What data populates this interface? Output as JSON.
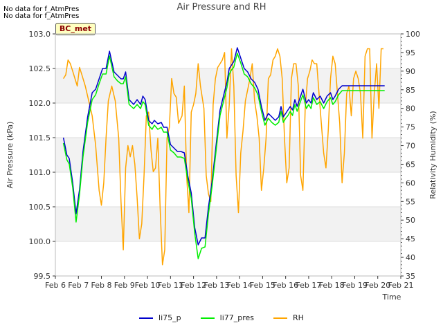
{
  "header": {
    "notes": [
      "No data for f_AtmPres",
      "No data for f_AtmPres"
    ],
    "title": "Air Pressure and RH",
    "site": "BC_met"
  },
  "chart_data": {
    "type": "line",
    "title": "Air Pressure and RH",
    "xlabel": "Time",
    "ylabel": "Air Pressure (kPa)",
    "y2label": "Relativity Humidity (%)",
    "xlim": [
      6,
      21
    ],
    "ylim": [
      99.5,
      103.0
    ],
    "y2lim": [
      35,
      100
    ],
    "x_ticks": [
      6,
      7,
      8,
      9,
      10,
      11,
      12,
      13,
      14,
      15,
      16,
      17,
      18,
      19,
      20,
      21
    ],
    "x_tick_labels": [
      "Feb 6",
      "Feb 7",
      "Feb 8",
      "Feb 9",
      "Feb 10",
      "Feb 11",
      "Feb 12",
      "Feb 13",
      "Feb 14",
      "Feb 15",
      "Feb 16",
      "Feb 17",
      "Feb 18",
      "Feb 19",
      "Feb 20",
      "Feb 21"
    ],
    "y_ticks": [
      "99.5",
      "100.0",
      "100.5",
      "101.0",
      "101.5",
      "102.0",
      "102.5",
      "103.0"
    ],
    "y2_ticks": [
      "35",
      "40",
      "45",
      "50",
      "55",
      "60",
      "65",
      "70",
      "75",
      "80",
      "85",
      "90",
      "95",
      "100"
    ],
    "grid": true,
    "legend_position": "bottom",
    "series": [
      {
        "name": "li75_p",
        "color": "#0000cc",
        "axis": "left",
        "x": [
          6.35,
          6.5,
          6.6,
          6.75,
          6.9,
          7.05,
          7.2,
          7.4,
          7.6,
          7.75,
          7.9,
          8.05,
          8.2,
          8.35,
          8.55,
          8.7,
          8.85,
          8.95,
          9.05,
          9.2,
          9.4,
          9.55,
          9.7,
          9.8,
          9.9,
          10.05,
          10.2,
          10.3,
          10.45,
          10.6,
          10.7,
          10.85,
          11.0,
          11.15,
          11.3,
          11.45,
          11.6,
          11.75,
          11.9,
          12.05,
          12.2,
          12.35,
          12.5,
          12.65,
          12.8,
          12.95,
          13.05,
          13.15,
          13.3,
          13.45,
          13.55,
          13.65,
          13.75,
          13.9,
          14.05,
          14.2,
          14.35,
          14.5,
          14.65,
          14.8,
          14.95,
          15.1,
          15.25,
          15.4,
          15.55,
          15.7,
          15.8,
          15.9,
          16.0,
          16.1,
          16.2,
          16.3,
          16.4,
          16.5,
          16.6,
          16.75,
          16.9,
          17.0,
          17.1,
          17.2,
          17.35,
          17.5,
          17.65,
          17.8,
          17.95,
          18.05,
          18.15,
          18.3,
          18.45,
          18.55,
          18.7,
          18.85,
          18.95,
          19.05,
          19.2,
          19.35,
          19.5,
          19.6,
          19.7,
          19.85,
          20.0,
          20.15,
          20.3
        ],
        "values": [
          101.5,
          101.25,
          101.2,
          100.85,
          100.4,
          100.75,
          101.3,
          101.8,
          102.15,
          102.2,
          102.35,
          102.5,
          102.5,
          102.75,
          102.45,
          102.4,
          102.35,
          102.35,
          102.45,
          102.05,
          101.98,
          102.05,
          101.98,
          102.1,
          102.05,
          101.75,
          101.7,
          101.75,
          101.7,
          101.72,
          101.65,
          101.65,
          101.4,
          101.35,
          101.3,
          101.3,
          101.28,
          100.95,
          100.7,
          100.2,
          99.95,
          100.05,
          100.05,
          100.5,
          100.85,
          101.3,
          101.6,
          101.9,
          102.1,
          102.3,
          102.5,
          102.55,
          102.6,
          102.8,
          102.65,
          102.5,
          102.45,
          102.35,
          102.3,
          102.2,
          101.95,
          101.75,
          101.85,
          101.8,
          101.75,
          101.8,
          101.95,
          101.8,
          101.85,
          101.9,
          101.95,
          101.9,
          102.05,
          101.95,
          102.05,
          102.2,
          102.0,
          102.05,
          102.0,
          102.15,
          102.05,
          102.1,
          102.0,
          102.1,
          102.15,
          102.05,
          102.1,
          102.2,
          102.25,
          102.25,
          102.25,
          102.25,
          102.25,
          102.25,
          102.25,
          102.25,
          102.25,
          102.25,
          102.25,
          102.25,
          102.25,
          102.25,
          102.25
        ]
      },
      {
        "name": "li77_pres",
        "color": "#00ee00",
        "axis": "left",
        "x": [
          6.35,
          6.5,
          6.6,
          6.75,
          6.9,
          7.05,
          7.2,
          7.4,
          7.6,
          7.75,
          7.9,
          8.05,
          8.2,
          8.35,
          8.55,
          8.7,
          8.85,
          8.95,
          9.05,
          9.2,
          9.4,
          9.55,
          9.7,
          9.8,
          9.9,
          10.05,
          10.2,
          10.3,
          10.45,
          10.6,
          10.7,
          10.85,
          11.0,
          11.15,
          11.3,
          11.45,
          11.6,
          11.75,
          11.9,
          12.05,
          12.2,
          12.35,
          12.5,
          12.65,
          12.8,
          12.95,
          13.05,
          13.15,
          13.3,
          13.45,
          13.55,
          13.65,
          13.75,
          13.9,
          14.05,
          14.2,
          14.35,
          14.5,
          14.65,
          14.8,
          14.95,
          15.1,
          15.25,
          15.4,
          15.55,
          15.7,
          15.8,
          15.9,
          16.0,
          16.1,
          16.2,
          16.3,
          16.4,
          16.5,
          16.6,
          16.75,
          16.9,
          17.0,
          17.1,
          17.2,
          17.35,
          17.5,
          17.65,
          17.8,
          17.95,
          18.05,
          18.15,
          18.3,
          18.45,
          18.55,
          18.7,
          18.85,
          18.95,
          19.05,
          19.2,
          19.35,
          19.5,
          19.6,
          19.7,
          19.85,
          20.0,
          20.15,
          20.3
        ],
        "values": [
          101.42,
          101.18,
          101.12,
          100.78,
          100.28,
          100.68,
          101.22,
          101.72,
          102.05,
          102.12,
          102.28,
          102.42,
          102.42,
          102.68,
          102.38,
          102.32,
          102.28,
          102.28,
          102.38,
          101.98,
          101.92,
          101.98,
          101.92,
          102.02,
          101.98,
          101.68,
          101.62,
          101.68,
          101.62,
          101.65,
          101.58,
          101.58,
          101.32,
          101.28,
          101.22,
          101.22,
          101.2,
          100.88,
          100.62,
          100.12,
          99.75,
          99.9,
          99.92,
          100.4,
          100.78,
          101.22,
          101.52,
          101.82,
          102.02,
          102.22,
          102.42,
          102.48,
          102.52,
          102.72,
          102.58,
          102.42,
          102.38,
          102.28,
          102.22,
          102.12,
          101.88,
          101.68,
          101.78,
          101.72,
          101.68,
          101.72,
          101.88,
          101.72,
          101.78,
          101.82,
          101.88,
          101.82,
          101.98,
          101.88,
          101.98,
          102.12,
          101.92,
          101.98,
          101.92,
          102.08,
          101.98,
          102.02,
          101.92,
          102.02,
          102.08,
          101.98,
          102.02,
          102.12,
          102.18,
          102.18,
          102.18,
          102.18,
          102.18,
          102.18,
          102.18,
          102.18,
          102.18,
          102.18,
          102.18,
          102.18,
          102.18,
          102.18,
          102.18
        ]
      },
      {
        "name": "RH",
        "color": "#ffa500",
        "axis": "right",
        "x": [
          6.35,
          6.45,
          6.55,
          6.65,
          6.75,
          6.85,
          6.95,
          7.05,
          7.15,
          7.3,
          7.45,
          7.6,
          7.75,
          7.9,
          8.0,
          8.1,
          8.2,
          8.3,
          8.45,
          8.6,
          8.75,
          8.85,
          8.95,
          9.05,
          9.15,
          9.25,
          9.35,
          9.45,
          9.55,
          9.65,
          9.75,
          9.85,
          9.95,
          10.05,
          10.15,
          10.25,
          10.35,
          10.45,
          10.55,
          10.65,
          10.75,
          10.85,
          10.95,
          11.05,
          11.15,
          11.25,
          11.35,
          11.5,
          11.6,
          11.7,
          11.8,
          11.9,
          12.0,
          12.1,
          12.2,
          12.3,
          12.45,
          12.55,
          12.65,
          12.75,
          12.85,
          12.95,
          13.05,
          13.15,
          13.25,
          13.35,
          13.45,
          13.55,
          13.65,
          13.75,
          13.85,
          13.95,
          14.05,
          14.15,
          14.25,
          14.35,
          14.45,
          14.55,
          14.65,
          14.75,
          14.85,
          14.95,
          15.05,
          15.15,
          15.25,
          15.35,
          15.45,
          15.55,
          15.65,
          15.75,
          15.85,
          15.95,
          16.05,
          16.15,
          16.25,
          16.35,
          16.45,
          16.55,
          16.65,
          16.75,
          16.85,
          16.95,
          17.05,
          17.15,
          17.25,
          17.35,
          17.45,
          17.55,
          17.65,
          17.75,
          17.85,
          17.95,
          18.05,
          18.15,
          18.25,
          18.35,
          18.45,
          18.55,
          18.65,
          18.75,
          18.85,
          18.95,
          19.05,
          19.15,
          19.25,
          19.35,
          19.45,
          19.55,
          19.65,
          19.75,
          19.85,
          19.95,
          20.05,
          20.15,
          20.25
        ],
        "values": [
          88,
          89,
          93,
          92,
          90,
          88,
          86,
          91,
          89,
          86,
          82,
          78,
          70,
          58,
          54,
          60,
          72,
          82,
          86,
          82,
          72,
          55,
          42,
          64,
          70,
          67,
          70,
          65,
          56,
          45,
          49,
          62,
          78,
          79,
          69,
          63,
          64,
          72,
          53,
          38,
          42,
          72,
          75,
          88,
          84,
          83,
          76,
          78,
          86,
          62,
          52,
          79,
          81,
          84,
          92,
          86,
          80,
          62,
          57,
          55,
          81,
          88,
          91,
          92,
          93,
          95,
          72,
          81,
          96,
          86,
          62,
          52,
          68,
          74,
          82,
          85,
          88,
          92,
          82,
          78,
          72,
          58,
          64,
          72,
          88,
          89,
          93,
          94,
          96,
          94,
          88,
          72,
          60,
          64,
          88,
          92,
          92,
          86,
          62,
          58,
          80,
          88,
          90,
          93,
          92,
          92,
          84,
          76,
          68,
          64,
          74,
          88,
          94,
          92,
          84,
          76,
          60,
          68,
          84,
          86,
          78,
          88,
          90,
          88,
          84,
          72,
          94,
          96,
          96,
          72,
          84,
          92,
          80,
          96,
          96
        ]
      }
    ]
  },
  "legend": {
    "items": [
      {
        "label": "li75_p",
        "color": "#0000cc"
      },
      {
        "label": "li77_pres",
        "color": "#00ee00"
      },
      {
        "label": "RH",
        "color": "#ffa500"
      }
    ]
  }
}
